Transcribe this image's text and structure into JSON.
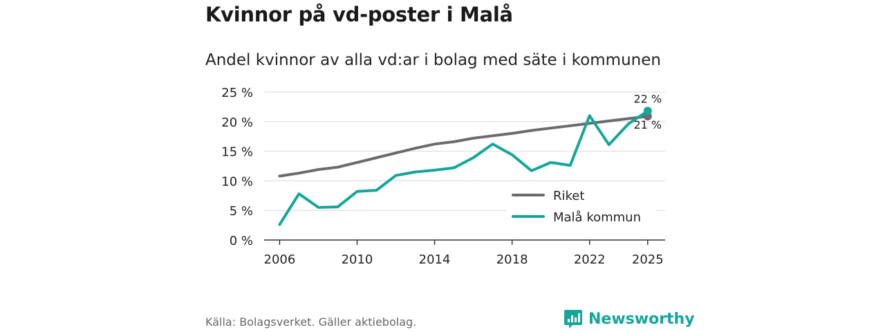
{
  "header": {
    "title": "Kvinnor på vd-poster i Malå",
    "subtitle": "Andel kvinnor av alla vd:ar i bolag med säte i kommunen"
  },
  "footer": {
    "source": "Källa: Bolagsverket. Gäller aktiebolag.",
    "brand": "Newsworthy",
    "brand_icon": "newsworthy-logo-icon"
  },
  "colors": {
    "riket": "#6d6a6e",
    "mala": "#14a69b",
    "grid": "#d9d9d9",
    "axis": "#333333",
    "brand": "#14a69b"
  },
  "chart_data": {
    "type": "line",
    "title": "Andel kvinnor av alla vd:ar i bolag med säte i kommunen",
    "xlabel": "",
    "ylabel": "",
    "xlim": [
      2005.2,
      2025.9
    ],
    "ylim": [
      0,
      25
    ],
    "grid": true,
    "legend_position": "bottom-right",
    "x_ticks": [
      2006,
      2010,
      2014,
      2018,
      2022,
      2025
    ],
    "x_tick_labels": [
      "2006",
      "2010",
      "2014",
      "2018",
      "2022",
      "2025"
    ],
    "y_ticks": [
      0,
      5,
      10,
      15,
      20,
      25
    ],
    "y_tick_labels": [
      "0 %",
      "5 %",
      "10 %",
      "15 %",
      "20 %",
      "25 %"
    ],
    "series": [
      {
        "name": "Riket",
        "color": "#6d6a6e",
        "x": [
          2006,
          2007,
          2008,
          2009,
          2010,
          2011,
          2012,
          2013,
          2014,
          2015,
          2016,
          2017,
          2018,
          2019,
          2020,
          2021,
          2022,
          2023,
          2024,
          2025
        ],
        "values": [
          10.8,
          11.3,
          11.9,
          12.3,
          13.1,
          13.9,
          14.7,
          15.5,
          16.2,
          16.6,
          17.2,
          17.6,
          18.0,
          18.5,
          18.9,
          19.3,
          19.7,
          20.1,
          20.5,
          20.9
        ],
        "end_label": "21 %"
      },
      {
        "name": "Malå kommun",
        "color": "#14a69b",
        "x": [
          2006,
          2007,
          2008,
          2009,
          2010,
          2011,
          2012,
          2013,
          2014,
          2015,
          2016,
          2017,
          2018,
          2019,
          2020,
          2021,
          2022,
          2023,
          2024,
          2025
        ],
        "values": [
          2.6,
          7.8,
          5.5,
          5.6,
          8.2,
          8.4,
          10.9,
          11.5,
          11.8,
          12.2,
          13.9,
          16.2,
          14.4,
          11.7,
          13.1,
          12.6,
          21.0,
          16.1,
          19.6,
          21.8
        ],
        "end_label": "22 %"
      }
    ]
  }
}
